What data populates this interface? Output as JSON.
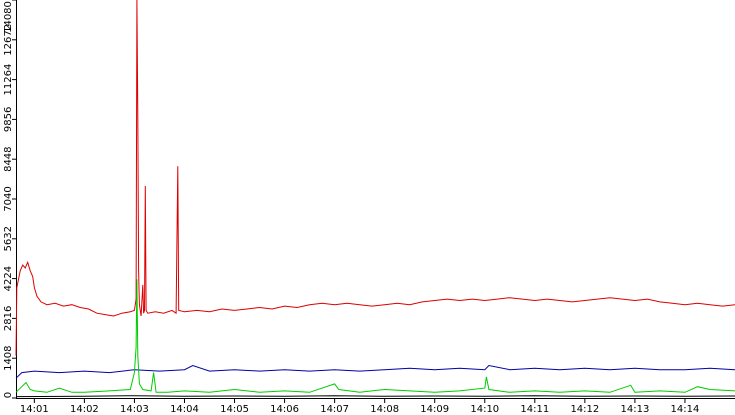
{
  "chart_data": {
    "type": "line",
    "x_ticks": [
      "14:01",
      "14:02",
      "14:03",
      "14:04",
      "14:05",
      "14:06",
      "14:07",
      "14:08",
      "14:09",
      "14:10",
      "14:11",
      "14:12",
      "14:13",
      "14:14"
    ],
    "y_ticks": [
      "0",
      "1408",
      "2816",
      "4224",
      "5632",
      "7040",
      "8448",
      "9856",
      "11264",
      "12672",
      "14080"
    ],
    "xlim": [
      "14:00:38",
      "14:15:00"
    ],
    "ylim": [
      0,
      14080
    ],
    "grid": false,
    "legend": "none",
    "series": [
      {
        "color": "#dd0000",
        "points": [
          [
            "14:00:38",
            1500
          ],
          [
            "14:00:39",
            3900
          ],
          [
            "14:00:41",
            4200
          ],
          [
            "14:00:43",
            4500
          ],
          [
            "14:00:46",
            4700
          ],
          [
            "14:00:49",
            4600
          ],
          [
            "14:00:52",
            4800
          ],
          [
            "14:00:55",
            4500
          ],
          [
            "14:00:58",
            4300
          ],
          [
            "14:01:00",
            3900
          ],
          [
            "14:01:03",
            3600
          ],
          [
            "14:01:08",
            3400
          ],
          [
            "14:01:15",
            3300
          ],
          [
            "14:01:25",
            3350
          ],
          [
            "14:01:35",
            3250
          ],
          [
            "14:01:45",
            3300
          ],
          [
            "14:01:55",
            3200
          ],
          [
            "14:02:05",
            3150
          ],
          [
            "14:02:15",
            3000
          ],
          [
            "14:02:25",
            2950
          ],
          [
            "14:02:35",
            2900
          ],
          [
            "14:02:45",
            3000
          ],
          [
            "14:02:55",
            3050
          ],
          [
            "14:03:00",
            3100
          ],
          [
            "14:03:02",
            3500
          ],
          [
            "14:03:03",
            14080
          ],
          [
            "14:03:04",
            10000
          ],
          [
            "14:03:05",
            4500
          ],
          [
            "14:03:06",
            3300
          ],
          [
            "14:03:08",
            2900
          ],
          [
            "14:03:10",
            4000
          ],
          [
            "14:03:11",
            3000
          ],
          [
            "14:03:12",
            3100
          ],
          [
            "14:03:13",
            7500
          ],
          [
            "14:03:14",
            3100
          ],
          [
            "14:03:16",
            3000
          ],
          [
            "14:03:25",
            3050
          ],
          [
            "14:03:35",
            3000
          ],
          [
            "14:03:45",
            3100
          ],
          [
            "14:03:50",
            3000
          ],
          [
            "14:03:52",
            8200
          ],
          [
            "14:03:53",
            3100
          ],
          [
            "14:04:00",
            3050
          ],
          [
            "14:04:15",
            3100
          ],
          [
            "14:04:30",
            3050
          ],
          [
            "14:04:45",
            3150
          ],
          [
            "14:05:00",
            3100
          ],
          [
            "14:05:15",
            3150
          ],
          [
            "14:05:30",
            3200
          ],
          [
            "14:05:45",
            3150
          ],
          [
            "14:06:00",
            3250
          ],
          [
            "14:06:15",
            3200
          ],
          [
            "14:06:30",
            3300
          ],
          [
            "14:06:45",
            3350
          ],
          [
            "14:07:00",
            3300
          ],
          [
            "14:07:15",
            3350
          ],
          [
            "14:07:30",
            3300
          ],
          [
            "14:07:45",
            3250
          ],
          [
            "14:08:00",
            3300
          ],
          [
            "14:08:15",
            3350
          ],
          [
            "14:08:30",
            3300
          ],
          [
            "14:08:45",
            3400
          ],
          [
            "14:09:00",
            3450
          ],
          [
            "14:09:15",
            3500
          ],
          [
            "14:09:30",
            3450
          ],
          [
            "14:09:45",
            3500
          ],
          [
            "14:10:00",
            3450
          ],
          [
            "14:10:15",
            3500
          ],
          [
            "14:10:30",
            3550
          ],
          [
            "14:10:45",
            3500
          ],
          [
            "14:11:00",
            3450
          ],
          [
            "14:11:15",
            3500
          ],
          [
            "14:11:30",
            3450
          ],
          [
            "14:11:45",
            3400
          ],
          [
            "14:12:00",
            3450
          ],
          [
            "14:12:15",
            3500
          ],
          [
            "14:12:30",
            3550
          ],
          [
            "14:12:45",
            3500
          ],
          [
            "14:13:00",
            3450
          ],
          [
            "14:13:15",
            3500
          ],
          [
            "14:13:30",
            3400
          ],
          [
            "14:13:45",
            3350
          ],
          [
            "14:14:00",
            3300
          ],
          [
            "14:14:15",
            3350
          ],
          [
            "14:14:30",
            3300
          ],
          [
            "14:14:45",
            3250
          ],
          [
            "14:15:00",
            3300
          ]
        ]
      },
      {
        "color": "#0000aa",
        "points": [
          [
            "14:00:38",
            700
          ],
          [
            "14:00:45",
            900
          ],
          [
            "14:01:00",
            950
          ],
          [
            "14:01:30",
            900
          ],
          [
            "14:02:00",
            950
          ],
          [
            "14:02:30",
            900
          ],
          [
            "14:03:00",
            1000
          ],
          [
            "14:03:30",
            950
          ],
          [
            "14:04:00",
            1000
          ],
          [
            "14:04:10",
            1150
          ],
          [
            "14:04:30",
            950
          ],
          [
            "14:05:00",
            1000
          ],
          [
            "14:05:30",
            950
          ],
          [
            "14:06:00",
            1000
          ],
          [
            "14:06:30",
            950
          ],
          [
            "14:07:00",
            1000
          ],
          [
            "14:07:30",
            950
          ],
          [
            "14:08:00",
            1000
          ],
          [
            "14:08:30",
            1050
          ],
          [
            "14:09:00",
            1000
          ],
          [
            "14:09:30",
            1050
          ],
          [
            "14:10:00",
            1000
          ],
          [
            "14:10:05",
            1150
          ],
          [
            "14:10:30",
            1000
          ],
          [
            "14:11:00",
            1050
          ],
          [
            "14:11:30",
            1000
          ],
          [
            "14:12:00",
            1050
          ],
          [
            "14:12:30",
            1000
          ],
          [
            "14:13:00",
            1050
          ],
          [
            "14:13:30",
            1000
          ],
          [
            "14:14:00",
            1000
          ],
          [
            "14:14:30",
            1050
          ],
          [
            "14:15:00",
            1000
          ]
        ]
      },
      {
        "color": "#00cc00",
        "points": [
          [
            "14:00:38",
            200
          ],
          [
            "14:00:45",
            400
          ],
          [
            "14:00:50",
            550
          ],
          [
            "14:00:55",
            300
          ],
          [
            "14:01:00",
            250
          ],
          [
            "14:01:15",
            200
          ],
          [
            "14:01:30",
            350
          ],
          [
            "14:01:45",
            200
          ],
          [
            "14:02:00",
            200
          ],
          [
            "14:02:30",
            250
          ],
          [
            "14:02:55",
            300
          ],
          [
            "14:03:00",
            900
          ],
          [
            "14:03:02",
            1800
          ],
          [
            "14:03:03",
            4200
          ],
          [
            "14:03:04",
            1500
          ],
          [
            "14:03:06",
            500
          ],
          [
            "14:03:10",
            300
          ],
          [
            "14:03:20",
            250
          ],
          [
            "14:03:23",
            900
          ],
          [
            "14:03:26",
            200
          ],
          [
            "14:03:40",
            200
          ],
          [
            "14:04:00",
            250
          ],
          [
            "14:04:30",
            200
          ],
          [
            "14:05:00",
            300
          ],
          [
            "14:05:30",
            200
          ],
          [
            "14:06:00",
            250
          ],
          [
            "14:06:30",
            200
          ],
          [
            "14:07:00",
            500
          ],
          [
            "14:07:05",
            300
          ],
          [
            "14:07:30",
            200
          ],
          [
            "14:08:00",
            300
          ],
          [
            "14:08:30",
            250
          ],
          [
            "14:09:00",
            200
          ],
          [
            "14:09:30",
            250
          ],
          [
            "14:10:00",
            350
          ],
          [
            "14:10:02",
            750
          ],
          [
            "14:10:05",
            300
          ],
          [
            "14:10:30",
            200
          ],
          [
            "14:11:00",
            250
          ],
          [
            "14:11:30",
            200
          ],
          [
            "14:12:00",
            250
          ],
          [
            "14:12:30",
            200
          ],
          [
            "14:12:55",
            450
          ],
          [
            "14:13:00",
            200
          ],
          [
            "14:13:30",
            250
          ],
          [
            "14:14:00",
            200
          ],
          [
            "14:14:15",
            400
          ],
          [
            "14:14:30",
            300
          ],
          [
            "14:15:00",
            250
          ]
        ]
      },
      {
        "color": "#000000",
        "points": [
          [
            "14:00:38",
            50
          ],
          [
            "14:02:00",
            60
          ],
          [
            "14:03:00",
            80
          ],
          [
            "14:04:00",
            60
          ],
          [
            "14:05:00",
            70
          ],
          [
            "14:06:00",
            60
          ],
          [
            "14:07:00",
            80
          ],
          [
            "14:08:00",
            60
          ],
          [
            "14:09:00",
            70
          ],
          [
            "14:10:00",
            60
          ],
          [
            "14:11:00",
            80
          ],
          [
            "14:12:00",
            60
          ],
          [
            "14:13:00",
            70
          ],
          [
            "14:14:00",
            60
          ],
          [
            "14:15:00",
            70
          ]
        ]
      }
    ]
  }
}
